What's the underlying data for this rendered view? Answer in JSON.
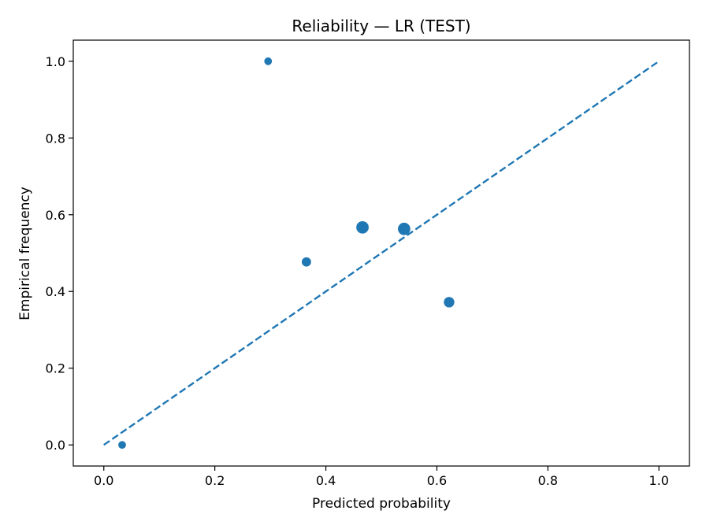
{
  "chart_data": {
    "type": "scatter",
    "title": "Reliability — LR (TEST)",
    "xlabel": "Predicted probability",
    "ylabel": "Empirical frequency",
    "xlim": [
      -0.055,
      1.055
    ],
    "ylim": [
      -0.055,
      1.055
    ],
    "xticks": [
      0.0,
      0.2,
      0.4,
      0.6,
      0.8,
      1.0
    ],
    "xtick_labels": [
      "0.0",
      "0.2",
      "0.4",
      "0.6",
      "0.8",
      "1.0"
    ],
    "yticks": [
      0.0,
      0.2,
      0.4,
      0.6,
      0.8,
      1.0
    ],
    "ytick_labels": [
      "0.0",
      "0.2",
      "0.4",
      "0.6",
      "0.8",
      "1.0"
    ],
    "grid": false,
    "color": "#1f77b4",
    "series": [
      {
        "type": "scatter",
        "x": [
          0.033,
          0.296,
          0.365,
          0.466,
          0.541,
          0.622
        ],
        "y": [
          0.0,
          1.0,
          0.477,
          0.567,
          0.563,
          0.372
        ],
        "relative_size": [
          1,
          1,
          2,
          5,
          5,
          3
        ]
      },
      {
        "type": "line",
        "style": "dashed",
        "x": [
          0.0,
          1.0
        ],
        "y": [
          0.0,
          1.0
        ]
      }
    ]
  }
}
